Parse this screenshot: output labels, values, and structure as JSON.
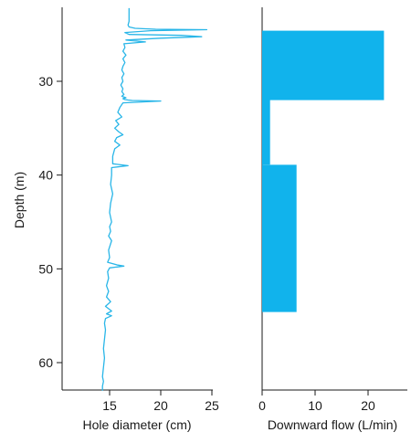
{
  "chart_data": [
    {
      "type": "line",
      "panel": "left",
      "xlabel": "Hole diameter (cm)",
      "ylabel": "Depth (m)",
      "xlim": [
        10,
        25
      ],
      "ylim": [
        63,
        23
      ],
      "xticks": [
        15,
        20,
        25
      ],
      "yticks": [
        30,
        40,
        50,
        60
      ],
      "y_inverted": true,
      "grid": false,
      "color": "#29b6e8",
      "series": [
        {
          "x": [
            16.9,
            16.9,
            16.8,
            16.9,
            17.5,
            19.5,
            24.5,
            19.0,
            16.5,
            16.9,
            22.0,
            24.0,
            20.0,
            16.6,
            18.5,
            16.4,
            16.5,
            16.3,
            16.6,
            16.3,
            16.5,
            16.3,
            16.2,
            16.4,
            16.2,
            16.3,
            16.1,
            16.3,
            16.2,
            16.4,
            16.2,
            16.6,
            16.3,
            16.5,
            16.8,
            17.2,
            20.0,
            16.3,
            16.0,
            15.8,
            16.2,
            15.6,
            15.9,
            15.5,
            15.9,
            16.3,
            15.7,
            15.5,
            16.0,
            15.5,
            15.3,
            15.3,
            16.8,
            15.2,
            15.2,
            15.1,
            15.3,
            15.1,
            15.0,
            15.2,
            15.0,
            15.1,
            14.9,
            15.2,
            14.9,
            15.0,
            14.8,
            15.8,
            16.4,
            15.0,
            14.8,
            14.9,
            14.7,
            14.9,
            14.7,
            15.1,
            14.6,
            15.2,
            14.7,
            15.2,
            14.6,
            14.5,
            14.6,
            14.5,
            14.4,
            14.5,
            14.4,
            14.3,
            14.4,
            14.3,
            14.3
          ],
          "y": [
            22.2,
            23.6,
            24.0,
            24.2,
            24.35,
            24.45,
            24.5,
            24.6,
            24.8,
            25.0,
            25.1,
            25.25,
            25.4,
            25.6,
            25.8,
            26.0,
            26.4,
            26.8,
            27.2,
            27.6,
            28.0,
            28.4,
            28.8,
            29.2,
            29.6,
            30.0,
            30.4,
            30.8,
            31.1,
            31.4,
            31.6,
            31.75,
            31.85,
            31.95,
            32.0,
            32.05,
            32.1,
            32.3,
            32.8,
            33.3,
            33.8,
            34.2,
            34.6,
            35.0,
            35.4,
            35.7,
            36.0,
            36.4,
            36.8,
            37.2,
            38.0,
            38.8,
            39.0,
            39.2,
            40.0,
            41.0,
            42.0,
            43.0,
            44.0,
            45.0,
            45.5,
            46.0,
            46.5,
            47.0,
            48.0,
            48.8,
            49.3,
            49.6,
            49.7,
            49.9,
            50.3,
            51.0,
            51.8,
            52.4,
            53.0,
            53.5,
            54.0,
            54.5,
            54.8,
            55.0,
            55.3,
            55.8,
            56.5,
            57.5,
            58.5,
            59.5,
            60.5,
            61.5,
            62.0,
            62.5,
            63.0
          ]
        }
      ]
    },
    {
      "type": "area",
      "panel": "right",
      "xlabel": "Downward flow (L/min)",
      "ylabel": "",
      "xlim": [
        0,
        26
      ],
      "ylim": [
        63,
        23
      ],
      "xticks": [
        0,
        10,
        20
      ],
      "y_inverted": true,
      "grid": false,
      "color": "#11b3ec",
      "series": [
        {
          "steps": [
            {
              "y_top": 24.6,
              "y_bottom": 32.0,
              "flow": 23
            },
            {
              "y_top": 32.0,
              "y_bottom": 38.9,
              "flow": 1.5
            },
            {
              "y_top": 38.9,
              "y_bottom": 54.6,
              "flow": 6.5
            }
          ]
        }
      ]
    }
  ]
}
